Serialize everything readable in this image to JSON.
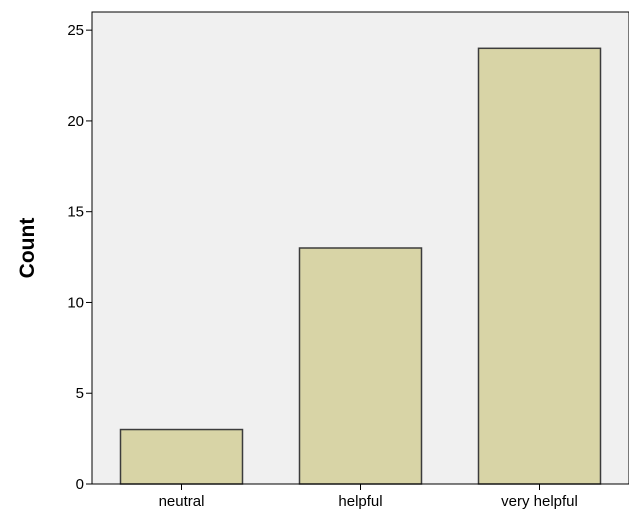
{
  "chart_data": {
    "type": "bar",
    "title": "",
    "xlabel": "",
    "ylabel": "Count",
    "categories": [
      "neutral",
      "helpful",
      "very helpful"
    ],
    "values": [
      3,
      13,
      24
    ],
    "ylim": [
      0,
      26
    ],
    "yticks": [
      0,
      5,
      10,
      15,
      20,
      25
    ],
    "grid": false,
    "legend": "none"
  },
  "colors": {
    "plot_background": "#f0f0f0",
    "bar_fill": "#d8d4a6",
    "bar_stroke": "#3c3c3c",
    "axis": "#000000"
  }
}
